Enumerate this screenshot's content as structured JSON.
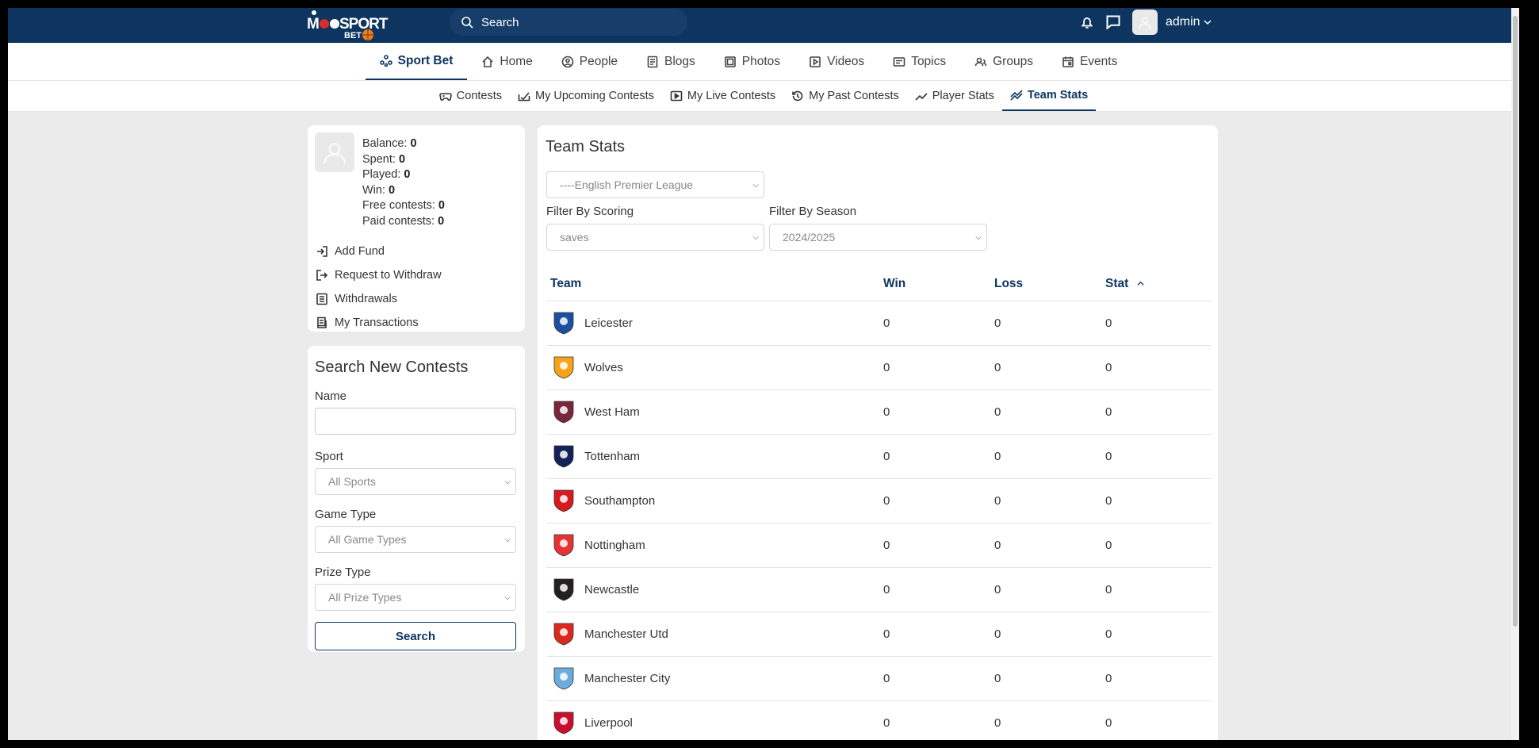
{
  "topbar": {
    "search_placeholder": "Search",
    "user_name": "admin",
    "logo_text": "MOOSPORT BET"
  },
  "main_nav": [
    {
      "label": "Sport Bet",
      "icon": "sport-bet-icon",
      "active": true
    },
    {
      "label": "Home",
      "icon": "home-icon"
    },
    {
      "label": "People",
      "icon": "people-icon"
    },
    {
      "label": "Blogs",
      "icon": "blogs-icon"
    },
    {
      "label": "Photos",
      "icon": "photos-icon"
    },
    {
      "label": "Videos",
      "icon": "videos-icon"
    },
    {
      "label": "Topics",
      "icon": "topics-icon"
    },
    {
      "label": "Groups",
      "icon": "groups-icon"
    },
    {
      "label": "Events",
      "icon": "events-icon"
    }
  ],
  "sub_nav": [
    {
      "label": "Contests",
      "icon": "gamepad-icon"
    },
    {
      "label": "My Upcoming Contests",
      "icon": "upcoming-icon"
    },
    {
      "label": "My Live Contests",
      "icon": "live-icon"
    },
    {
      "label": "My Past Contests",
      "icon": "history-icon"
    },
    {
      "label": "Player Stats",
      "icon": "trend-icon"
    },
    {
      "label": "Team Stats",
      "icon": "trend-icon",
      "active": true
    }
  ],
  "profile": {
    "balance_label": "Balance:",
    "balance": "0",
    "spent_label": "Spent:",
    "spent": "0",
    "played_label": "Played:",
    "played": "0",
    "win_label": "Win:",
    "win": "0",
    "free_label": "Free contests:",
    "free": "0",
    "paid_label": "Paid contests:",
    "paid": "0",
    "actions": {
      "add_fund": "Add Fund",
      "withdraw": "Request to Withdraw",
      "withdrawals": "Withdrawals",
      "transactions": "My Transactions"
    }
  },
  "search_contests": {
    "title": "Search New Contests",
    "name_label": "Name",
    "sport_label": "Sport",
    "sport_value": "All Sports",
    "game_type_label": "Game Type",
    "game_type_value": "All Game Types",
    "prize_type_label": "Prize Type",
    "prize_type_value": "All Prize Types",
    "button": "Search"
  },
  "team_stats": {
    "title": "Team Stats",
    "league_value": "----English Premier League",
    "scoring_label": "Filter By Scoring",
    "scoring_value": "saves",
    "season_label": "Filter By Season",
    "season_value": "2024/2025",
    "columns": {
      "team": "Team",
      "win": "Win",
      "loss": "Loss",
      "stat": "Stat"
    },
    "rows": [
      {
        "team": "Leicester",
        "win": "0",
        "loss": "0",
        "stat": "0",
        "color": "#1c4fa0"
      },
      {
        "team": "Wolves",
        "win": "0",
        "loss": "0",
        "stat": "0",
        "color": "#f6a21b"
      },
      {
        "team": "West Ham",
        "win": "0",
        "loss": "0",
        "stat": "0",
        "color": "#7a263a"
      },
      {
        "team": "Tottenham",
        "win": "0",
        "loss": "0",
        "stat": "0",
        "color": "#132257"
      },
      {
        "team": "Southampton",
        "win": "0",
        "loss": "0",
        "stat": "0",
        "color": "#d71920"
      },
      {
        "team": "Nottingham",
        "win": "0",
        "loss": "0",
        "stat": "0",
        "color": "#e53233"
      },
      {
        "team": "Newcastle",
        "win": "0",
        "loss": "0",
        "stat": "0",
        "color": "#241f20"
      },
      {
        "team": "Manchester Utd",
        "win": "0",
        "loss": "0",
        "stat": "0",
        "color": "#da291c"
      },
      {
        "team": "Manchester City",
        "win": "0",
        "loss": "0",
        "stat": "0",
        "color": "#6cabdd"
      },
      {
        "team": "Liverpool",
        "win": "0",
        "loss": "0",
        "stat": "0",
        "color": "#c8102e"
      }
    ]
  }
}
